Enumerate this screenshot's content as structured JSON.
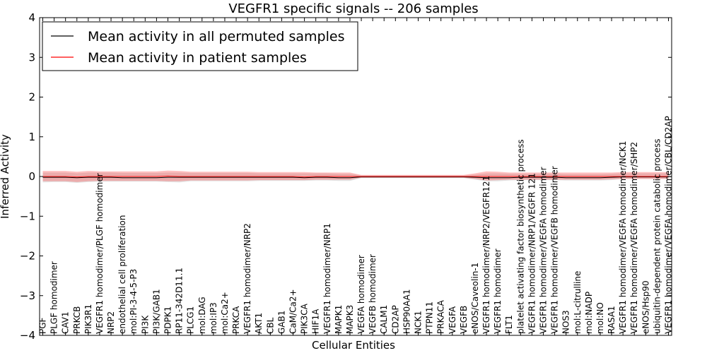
{
  "chart_data": {
    "type": "line",
    "title": "VEGFR1 specific signals -- 206 samples",
    "xlabel": "Cellular Entities",
    "ylabel": "Inferred Activity",
    "ylim": [
      -4,
      4
    ],
    "yticks": [
      -4,
      -3,
      -2,
      -1,
      0,
      1,
      2,
      3,
      4
    ],
    "ytick_labels": [
      "−4",
      "−3",
      "−2",
      "−1",
      "0",
      "1",
      "2",
      "3",
      "4"
    ],
    "categories": [
      "PGF",
      "PLGF homodimer",
      "CAV1",
      "PRKCB",
      "PIK3R1",
      "VEGFR1 homodimer/PLGF homodimer",
      "NRP2",
      "endothelial cell proliferation",
      "mol:PI-3-4-5-P3",
      "PI3K",
      "PI3K/GAB1",
      "PDPK1",
      "RP11-342D11.1",
      "PLCG1",
      "mol:DAG",
      "mol:IP3",
      "mol:Ca2+",
      "PRKCA",
      "VEGFR1 homodimer/NRP2",
      "AKT1",
      "CBL",
      "GAB1",
      "CaM/Ca2+",
      "PIK3CA",
      "HIF1A",
      "VEGFR1 homodimer/NRP1",
      "MAPK1",
      "MAPK3",
      "VEGFA homodimer",
      "VEGFB homodimer",
      "CALM1",
      "CD2AP",
      "HSP90AA1",
      "NCK1",
      "PTPN11",
      "PRKACA",
      "VEGFA",
      "VEGFB",
      "eNOS/Caveolin-1",
      "VEGFR1 homodimer/NRP2/VEGFR121",
      "VEGFR1 homodimer",
      "FLT1",
      "platelet activating factor biosynthetic process",
      "VEGFR1 homodimer/NRP1/VEGFR 121",
      "VEGFR1 homodimer/VEGFA homodimer",
      "VEGFR1 homodimer/VEGFB homodimer",
      "NOS3",
      "mol:L-citrulline",
      "mol:NADP",
      "mol:NO",
      "RASA1",
      "VEGFR1 homodimer/VEGFA homodimer/NCK1",
      "VEGFR1 homodimer/VEGFA homodimer/SHP2",
      "eNOS/Hsp90",
      "ubiquitin-dependent protein catabolic process",
      "VEGFR1 homodimer/VEGFA homodimer/CBL/CD2AP"
    ],
    "series": [
      {
        "name": "Mean activity in all permuted samples",
        "color": "#000000",
        "values": [
          -0.02,
          -0.02,
          -0.02,
          -0.03,
          -0.02,
          -0.02,
          -0.02,
          -0.03,
          -0.03,
          -0.03,
          -0.03,
          -0.02,
          -0.02,
          -0.02,
          -0.02,
          -0.02,
          -0.02,
          -0.02,
          -0.02,
          -0.02,
          -0.02,
          -0.02,
          -0.02,
          -0.03,
          -0.02,
          -0.02,
          -0.03,
          -0.03,
          -0.01,
          -0.01,
          -0.01,
          -0.01,
          -0.01,
          -0.01,
          -0.01,
          -0.01,
          -0.01,
          -0.01,
          -0.02,
          -0.03,
          -0.03,
          -0.03,
          -0.02,
          -0.02,
          -0.02,
          -0.02,
          -0.03,
          -0.03,
          -0.03,
          -0.03,
          -0.02,
          -0.01,
          -0.01,
          -0.01,
          -0.01,
          -0.01
        ],
        "band_low": [
          -0.15,
          -0.14,
          -0.14,
          -0.16,
          -0.14,
          -0.13,
          -0.13,
          -0.13,
          -0.13,
          -0.13,
          -0.13,
          -0.14,
          -0.15,
          -0.12,
          -0.12,
          -0.12,
          -0.12,
          -0.12,
          -0.12,
          -0.11,
          -0.11,
          -0.11,
          -0.11,
          -0.11,
          -0.1,
          -0.1,
          -0.11,
          -0.11,
          -0.04,
          -0.04,
          -0.04,
          -0.04,
          -0.04,
          -0.04,
          -0.04,
          -0.04,
          -0.04,
          -0.04,
          -0.08,
          -0.12,
          -0.12,
          -0.1,
          -0.09,
          -0.09,
          -0.09,
          -0.09,
          -0.1,
          -0.1,
          -0.1,
          -0.1,
          -0.09,
          -0.06,
          -0.06,
          -0.06,
          -0.06,
          -0.06
        ],
        "band_high": [
          0.1,
          0.1,
          0.1,
          0.08,
          0.1,
          0.1,
          0.1,
          0.09,
          0.09,
          0.09,
          0.09,
          0.1,
          0.1,
          0.09,
          0.09,
          0.09,
          0.09,
          0.09,
          0.09,
          0.08,
          0.08,
          0.08,
          0.08,
          0.08,
          0.08,
          0.08,
          0.07,
          0.07,
          0.03,
          0.03,
          0.03,
          0.03,
          0.03,
          0.03,
          0.03,
          0.03,
          0.03,
          0.03,
          0.05,
          0.08,
          0.08,
          0.07,
          0.07,
          0.07,
          0.07,
          0.07,
          0.06,
          0.06,
          0.06,
          0.06,
          0.07,
          0.08,
          0.08,
          0.08,
          0.08,
          0.08
        ]
      },
      {
        "name": "Mean activity in patient samples",
        "color": "#ff0000",
        "values": [
          0.0,
          0.0,
          0.0,
          -0.01,
          0.0,
          0.0,
          0.0,
          0.0,
          0.0,
          0.0,
          0.0,
          0.01,
          0.0,
          0.0,
          0.0,
          0.0,
          0.0,
          0.0,
          0.0,
          0.0,
          0.0,
          0.0,
          0.0,
          -0.01,
          0.0,
          0.0,
          0.0,
          0.0,
          0.0,
          0.0,
          0.0,
          0.0,
          0.0,
          0.0,
          0.0,
          0.0,
          0.0,
          0.0,
          0.0,
          0.0,
          0.0,
          0.0,
          0.0,
          0.0,
          0.0,
          0.0,
          0.0,
          0.0,
          0.0,
          0.0,
          0.0,
          0.0,
          0.0,
          0.0,
          0.0,
          0.0
        ],
        "band_low": [
          -0.12,
          -0.12,
          -0.12,
          -0.14,
          -0.12,
          -0.11,
          -0.11,
          -0.11,
          -0.11,
          -0.11,
          -0.11,
          -0.12,
          -0.12,
          -0.1,
          -0.1,
          -0.1,
          -0.1,
          -0.1,
          -0.1,
          -0.09,
          -0.09,
          -0.09,
          -0.09,
          -0.09,
          -0.08,
          -0.08,
          -0.08,
          -0.08,
          -0.03,
          -0.03,
          -0.03,
          -0.03,
          -0.03,
          -0.03,
          -0.03,
          -0.03,
          -0.03,
          -0.03,
          -0.06,
          -0.1,
          -0.09,
          -0.08,
          -0.08,
          -0.08,
          -0.08,
          -0.08,
          -0.08,
          -0.08,
          -0.08,
          -0.08,
          -0.07,
          -0.06,
          -0.06,
          -0.06,
          -0.06,
          -0.06
        ],
        "band_high": [
          0.14,
          0.14,
          0.14,
          0.12,
          0.14,
          0.13,
          0.13,
          0.13,
          0.13,
          0.13,
          0.13,
          0.15,
          0.14,
          0.12,
          0.12,
          0.12,
          0.12,
          0.12,
          0.12,
          0.11,
          0.11,
          0.11,
          0.11,
          0.11,
          0.1,
          0.1,
          0.1,
          0.1,
          0.04,
          0.04,
          0.04,
          0.04,
          0.04,
          0.04,
          0.04,
          0.04,
          0.04,
          0.04,
          0.08,
          0.13,
          0.12,
          0.1,
          0.1,
          0.1,
          0.1,
          0.1,
          0.1,
          0.1,
          0.1,
          0.1,
          0.1,
          0.11,
          0.11,
          0.11,
          0.11,
          0.11
        ]
      }
    ],
    "legend": {
      "location": "top-left",
      "entries": [
        "Mean activity in all permuted samples",
        "Mean activity in patient samples"
      ]
    },
    "grid": false
  }
}
